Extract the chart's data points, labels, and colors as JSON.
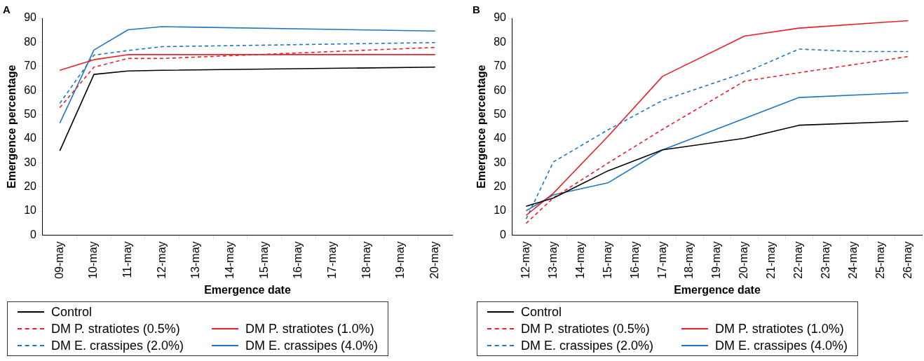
{
  "chart_data": [
    {
      "type": "line",
      "title": "A",
      "xlabel": "Emergence date",
      "ylabel": "Emergence percentage",
      "categories": [
        "09-may",
        "10-may",
        "11-may",
        "12-may",
        "13-may",
        "14-may",
        "15-may",
        "16-may",
        "17-may",
        "18-may",
        "19-may",
        "20-may"
      ],
      "ylim": [
        0,
        90
      ],
      "yticks": [
        0,
        10,
        20,
        30,
        40,
        50,
        60,
        70,
        80,
        90
      ],
      "grid": false,
      "legend": "bottom",
      "marker": "none",
      "series": [
        {
          "name": "Control",
          "color": "#000000",
          "line_style": "solid",
          "x": [
            "09-may",
            "10-may",
            "11-may",
            "12-may",
            "20-may"
          ],
          "values": [
            35,
            66.7,
            68.1,
            68.4,
            69.7
          ]
        },
        {
          "name": "DM P. stratiotes (0.5%)",
          "color": "#e8202a",
          "line_style": "dashed",
          "x": [
            "09-may",
            "10-may",
            "11-may",
            "12-may",
            "20-may"
          ],
          "values": [
            52.9,
            69.7,
            73.3,
            73.3,
            77.9
          ]
        },
        {
          "name": "DM P. stratiotes (1.0%)",
          "color": "#e8202a",
          "line_style": "solid",
          "x": [
            "09-may",
            "10-may",
            "11-may",
            "12-may",
            "20-may"
          ],
          "values": [
            68.4,
            72.8,
            74.9,
            74.9,
            74.9
          ]
        },
        {
          "name": "DM E. crassipes (2.0%)",
          "color": "#1f77c4",
          "line_style": "dashed",
          "x": [
            "09-may",
            "10-may",
            "11-may",
            "12-may",
            "20-may"
          ],
          "values": [
            54.7,
            74.7,
            76.6,
            78.2,
            79.9
          ]
        },
        {
          "name": "DM E. crassipes (4.0%)",
          "color": "#1f77c4",
          "line_style": "solid",
          "x": [
            "09-may",
            "10-may",
            "11-may",
            "12-may",
            "20-may"
          ],
          "values": [
            46.5,
            76.8,
            85.2,
            86.5,
            84.7
          ]
        }
      ]
    },
    {
      "type": "line",
      "title": "B",
      "xlabel": "Emergence date",
      "ylabel": "Emergence percentage",
      "categories": [
        "12-may",
        "13-may",
        "14-may",
        "15-may",
        "16-may",
        "17-may",
        "18-may",
        "19-may",
        "20-may",
        "21-may",
        "22-may",
        "23-may",
        "24-may",
        "25-may",
        "26-may"
      ],
      "ylim": [
        0,
        90
      ],
      "yticks": [
        0,
        10,
        20,
        30,
        40,
        50,
        60,
        70,
        80,
        90
      ],
      "grid": false,
      "legend": "bottom",
      "marker": "none",
      "series": [
        {
          "name": "Control",
          "color": "#000000",
          "line_style": "solid",
          "x": [
            "12-may",
            "13-may",
            "15-may",
            "17-may",
            "20-may",
            "22-may",
            "26-may"
          ],
          "values": [
            12,
            15.4,
            26.7,
            35.4,
            40.2,
            45.6,
            47.3
          ]
        },
        {
          "name": "DM P. stratiotes (0.5%)",
          "color": "#e8202a",
          "line_style": "dashed",
          "x": [
            "12-may",
            "13-may",
            "15-may",
            "17-may",
            "20-may",
            "22-may",
            "26-may"
          ],
          "values": [
            4.9,
            15.5,
            29.9,
            43.9,
            63.9,
            67.4,
            74.1
          ]
        },
        {
          "name": "DM P. stratiotes (1.0%)",
          "color": "#e8202a",
          "line_style": "solid",
          "x": [
            "12-may",
            "13-may",
            "15-may",
            "17-may",
            "20-may",
            "22-may",
            "26-may"
          ],
          "values": [
            8.2,
            17.4,
            41,
            65.9,
            82.6,
            85.9,
            89
          ]
        },
        {
          "name": "DM E. crassipes (2.0%)",
          "color": "#1f77c4",
          "line_style": "dashed",
          "x": [
            "12-may",
            "13-may",
            "15-may",
            "17-may",
            "20-may",
            "22-may",
            "24-may",
            "26-may"
          ],
          "values": [
            6.7,
            30.4,
            43.7,
            55.9,
            67.4,
            77.2,
            76.2,
            76.2
          ]
        },
        {
          "name": "DM E. crassipes (4.0%)",
          "color": "#1f77c4",
          "line_style": "solid",
          "x": [
            "12-may",
            "13-may",
            "15-may",
            "17-may",
            "20-may",
            "22-may",
            "26-may"
          ],
          "values": [
            10.1,
            16.7,
            21.7,
            35.4,
            48.4,
            57.1,
            59.1
          ]
        }
      ]
    }
  ]
}
